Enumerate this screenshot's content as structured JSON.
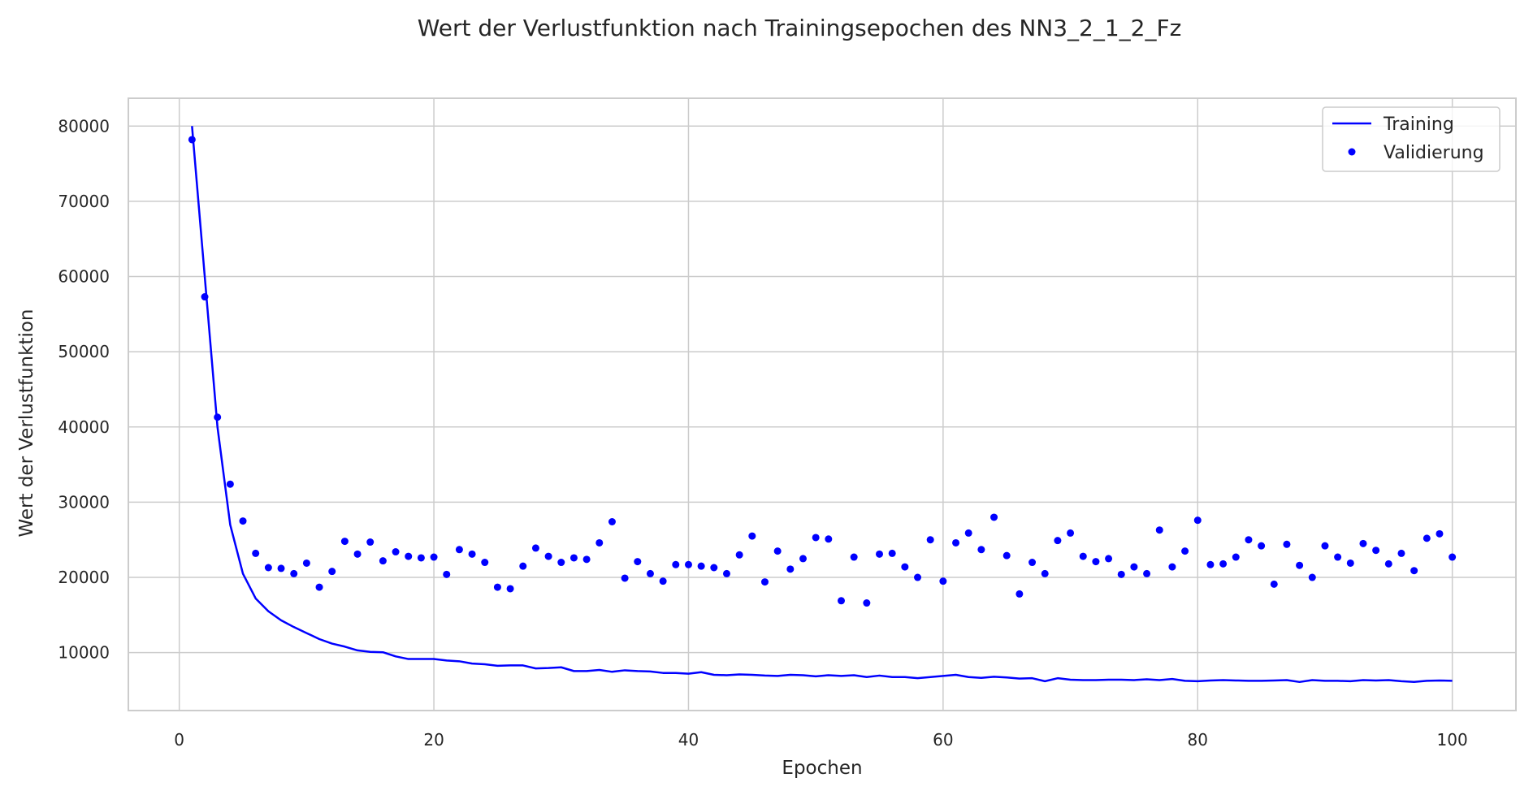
{
  "chart_data": {
    "type": "line",
    "title": "Wert der Verlustfunktion nach Trainingsepochen des NN3_2_1_2_Fz",
    "xlabel": "Epochen",
    "ylabel": "Wert der Verlustfunktion",
    "xlim": [
      -4,
      105
    ],
    "ylim": [
      2300,
      83700
    ],
    "xticks": [
      0,
      20,
      40,
      60,
      80,
      100
    ],
    "yticks": [
      10000,
      20000,
      30000,
      40000,
      50000,
      60000,
      70000,
      80000
    ],
    "xtick_labels": [
      "0",
      "20",
      "40",
      "60",
      "80",
      "100"
    ],
    "ytick_labels": [
      "10000",
      "20000",
      "30000",
      "40000",
      "50000",
      "60000",
      "70000",
      "80000"
    ],
    "grid": true,
    "legend_position": "top-right",
    "colors": {
      "series": "#0000ff",
      "grid": "#cccccc",
      "frame": "#cccccc",
      "background": "#ffffff"
    },
    "x": [
      1,
      2,
      3,
      4,
      5,
      6,
      7,
      8,
      9,
      10,
      11,
      12,
      13,
      14,
      15,
      16,
      17,
      18,
      19,
      20,
      21,
      22,
      23,
      24,
      25,
      26,
      27,
      28,
      29,
      30,
      31,
      32,
      33,
      34,
      35,
      36,
      37,
      38,
      39,
      40,
      41,
      42,
      43,
      44,
      45,
      46,
      47,
      48,
      49,
      50,
      51,
      52,
      53,
      54,
      55,
      56,
      57,
      58,
      59,
      60,
      61,
      62,
      63,
      64,
      65,
      66,
      67,
      68,
      69,
      70,
      71,
      72,
      73,
      74,
      75,
      76,
      77,
      78,
      79,
      80,
      81,
      82,
      83,
      84,
      85,
      86,
      87,
      88,
      89,
      90,
      91,
      92,
      93,
      94,
      95,
      96,
      97,
      98,
      99,
      100
    ],
    "series": [
      {
        "name": "Training",
        "style": "line",
        "values": [
          80000,
          60000,
          40000,
          27000,
          20500,
          17200,
          15500,
          14300,
          13400,
          12600,
          11800,
          11200,
          10800,
          10300,
          10100,
          10050,
          9500,
          9150,
          9150,
          9150,
          8950,
          8850,
          8550,
          8450,
          8250,
          8300,
          8300,
          7900,
          7950,
          8050,
          7550,
          7550,
          7700,
          7450,
          7650,
          7550,
          7500,
          7300,
          7300,
          7200,
          7400,
          7050,
          7000,
          7100,
          7050,
          6950,
          6900,
          7050,
          7000,
          6850,
          7000,
          6900,
          7000,
          6750,
          6950,
          6750,
          6750,
          6600,
          6750,
          6900,
          7050,
          6750,
          6650,
          6800,
          6700,
          6550,
          6600,
          6200,
          6600,
          6400,
          6350,
          6350,
          6400,
          6400,
          6350,
          6450,
          6350,
          6500,
          6250,
          6200,
          6300,
          6350,
          6300,
          6250,
          6250,
          6300,
          6350,
          6100,
          6350,
          6250,
          6250,
          6200,
          6350,
          6300,
          6350,
          6200,
          6100,
          6250,
          6300,
          6250
        ]
      },
      {
        "name": "Validierung",
        "style": "markers",
        "values": [
          78200,
          57300,
          41300,
          32400,
          27500,
          23200,
          21300,
          21200,
          20500,
          21900,
          18700,
          20800,
          24800,
          23100,
          24700,
          22200,
          23400,
          22800,
          22600,
          22700,
          20400,
          23700,
          23100,
          22000,
          18700,
          18500,
          21500,
          23900,
          22800,
          22000,
          22600,
          22400,
          24600,
          27400,
          19900,
          22100,
          20500,
          19500,
          21700,
          21700,
          21500,
          21300,
          20500,
          23000,
          25500,
          19400,
          23500,
          21100,
          22500,
          25300,
          25100,
          16900,
          22700,
          16600,
          23100,
          23200,
          21400,
          20000,
          25000,
          19500,
          24600,
          25900,
          23700,
          28000,
          22900,
          17800,
          22000,
          20500,
          24900,
          25900,
          22800,
          22100,
          22500,
          20400,
          21400,
          20500,
          26300,
          21400,
          23500,
          27600,
          21700,
          21800,
          22700,
          25000,
          24200,
          19100,
          24400,
          21600,
          20000,
          24200,
          22700,
          21900,
          24500,
          23600,
          21800,
          23200,
          20900,
          25200,
          25800,
          22700
        ]
      }
    ]
  }
}
